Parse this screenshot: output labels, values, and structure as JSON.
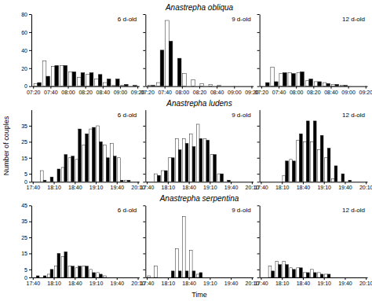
{
  "chart_data": [
    {
      "type": "bar",
      "annotations": [
        "6 d-old"
      ],
      "categories": [
        null,
        null,
        null,
        null,
        null,
        null,
        null,
        null,
        null,
        null,
        null,
        null
      ],
      "series": [
        {
          "color": "#ffffff",
          "values": [
            3,
            28,
            22,
            23,
            16,
            10,
            13,
            8,
            4,
            1,
            1,
            0
          ]
        },
        {
          "color": "#000000",
          "values": [
            4,
            11,
            23,
            23,
            16,
            15,
            15,
            13,
            8,
            8,
            2,
            1
          ]
        }
      ],
      "xlim": [
        -0.7,
        11.7
      ],
      "xticks": [
        {
          "value": -0.5,
          "label": "07:20"
        },
        {
          "value": 1.5,
          "label": "07:40"
        },
        {
          "value": 3.5,
          "label": "08:00"
        },
        {
          "value": 5.5,
          "label": "08:20"
        },
        {
          "value": 7.5,
          "label": "08:40"
        },
        {
          "value": 9.5,
          "label": "09:00"
        },
        {
          "value": 11.5,
          "label": "09:20"
        }
      ],
      "ylim": [
        0,
        80
      ],
      "yticks": [
        0,
        20,
        40,
        60,
        80
      ]
    },
    {
      "type": "bar",
      "title": "Anastrepha obliqua",
      "annotations": [
        "9 d-old"
      ],
      "categories": [
        null,
        null,
        null,
        null,
        null,
        null,
        null,
        null,
        null,
        null,
        null,
        null
      ],
      "series": [
        {
          "color": "#ffffff",
          "values": [
            1,
            4,
            73,
            0,
            14,
            7,
            3,
            2,
            1,
            0,
            0,
            0
          ]
        },
        {
          "color": "#000000",
          "values": [
            1,
            40,
            50,
            31,
            0,
            0,
            0,
            0,
            0,
            0,
            0,
            0
          ]
        }
      ],
      "xlim": [
        -0.7,
        11.7
      ],
      "xticks": [
        {
          "value": -0.5,
          "label": "07:20"
        },
        {
          "value": 1.5,
          "label": "07:40"
        },
        {
          "value": 3.5,
          "label": "08:00"
        },
        {
          "value": 5.5,
          "label": "08:20"
        },
        {
          "value": 7.5,
          "label": "08:40"
        },
        {
          "value": 9.5,
          "label": "09:00"
        },
        {
          "value": 11.5,
          "label": "09:20"
        }
      ],
      "ylim": [
        0,
        80
      ],
      "yticks": [
        0,
        20,
        40,
        60,
        80
      ],
      "tick_labels": "x"
    },
    {
      "type": "bar",
      "annotations": [
        "12 d-old"
      ],
      "categories": [
        null,
        null,
        null,
        null,
        null,
        null,
        null,
        null,
        null,
        null,
        null,
        null
      ],
      "series": [
        {
          "color": "#ffffff",
          "values": [
            0,
            21,
            14,
            15,
            15,
            6,
            5,
            4,
            2,
            1,
            0,
            0
          ]
        },
        {
          "color": "#000000",
          "values": [
            4,
            5,
            15,
            14,
            16,
            8,
            5,
            3,
            2,
            1,
            0,
            0
          ]
        }
      ],
      "xlim": [
        -0.7,
        11.7
      ],
      "xticks": [
        {
          "value": -0.5,
          "label": "07:20"
        },
        {
          "value": 1.5,
          "label": "07:40"
        },
        {
          "value": 3.5,
          "label": "08:00"
        },
        {
          "value": 5.5,
          "label": "08:20"
        },
        {
          "value": 7.5,
          "label": "08:40"
        },
        {
          "value": 9.5,
          "label": "09:00"
        },
        {
          "value": 11.5,
          "label": "09:20"
        }
      ],
      "ylim": [
        0,
        80
      ],
      "yticks": [
        0,
        20,
        40,
        60,
        80
      ],
      "tick_labels": "x"
    },
    {
      "type": "bar",
      "annotations": [
        "6 d-old"
      ],
      "ylabel": "Number of couples",
      "categories": [
        null,
        null,
        null,
        null,
        null,
        null,
        null,
        null,
        null,
        null,
        null,
        null,
        null,
        null,
        null
      ],
      "series": [
        {
          "color": "#ffffff",
          "values": [
            0,
            7,
            0,
            0,
            9,
            15,
            14,
            23,
            33,
            35,
            23,
            24,
            15,
            1,
            0
          ]
        },
        {
          "color": "#000000",
          "values": [
            0,
            1,
            3,
            8,
            17,
            16,
            33,
            30,
            34,
            25,
            15,
            16,
            1,
            1,
            0
          ]
        }
      ],
      "xlim": [
        -0.7,
        14.7
      ],
      "xticks": [
        {
          "value": -0.5,
          "label": "17:40"
        },
        {
          "value": 2.5,
          "label": "18:10"
        },
        {
          "value": 5.5,
          "label": "18:40"
        },
        {
          "value": 8.5,
          "label": "19:10"
        },
        {
          "value": 11.5,
          "label": "19:40"
        },
        {
          "value": 14.5,
          "label": "20:10"
        }
      ],
      "ylim": [
        0,
        45
      ],
      "yticks": [
        0,
        5,
        15,
        25,
        35
      ]
    },
    {
      "type": "bar",
      "title": "Anastrepha ludens",
      "annotations": [
        "9 d-old"
      ],
      "categories": [
        null,
        null,
        null,
        null,
        null,
        null,
        null,
        null,
        null,
        null,
        null,
        null,
        null,
        null,
        null
      ],
      "series": [
        {
          "color": "#ffffff",
          "values": [
            0,
            5,
            7,
            15,
            27,
            27,
            30,
            36,
            27,
            17,
            5,
            0,
            0,
            0,
            0
          ]
        },
        {
          "color": "#000000",
          "values": [
            0,
            4,
            7,
            15,
            20,
            24,
            22,
            27,
            26,
            17,
            5,
            1,
            0,
            0,
            0
          ]
        }
      ],
      "xlim": [
        -0.7,
        14.7
      ],
      "xticks": [
        {
          "value": -0.5,
          "label": "17:40"
        },
        {
          "value": 2.5,
          "label": "18:10"
        },
        {
          "value": 5.5,
          "label": "18:40"
        },
        {
          "value": 8.5,
          "label": "19:10"
        },
        {
          "value": 11.5,
          "label": "19:40"
        },
        {
          "value": 14.5,
          "label": "20:10"
        }
      ],
      "ylim": [
        0,
        45
      ],
      "yticks": [
        0,
        5,
        15,
        25,
        35
      ],
      "tick_labels": "x"
    },
    {
      "type": "bar",
      "annotations": [
        "12 d-old"
      ],
      "categories": [
        null,
        null,
        null,
        null,
        null,
        null,
        null,
        null,
        null,
        null,
        null,
        null,
        null,
        null,
        null
      ],
      "series": [
        {
          "color": "#ffffff",
          "values": [
            0,
            0,
            0,
            4,
            14,
            26,
            25,
            25,
            20,
            15,
            2,
            0,
            0,
            0,
            0
          ]
        },
        {
          "color": "#000000",
          "values": [
            0,
            0,
            0,
            13,
            13,
            30,
            38,
            38,
            29,
            21,
            10,
            5,
            1,
            0,
            0
          ]
        }
      ],
      "xlim": [
        -0.7,
        14.7
      ],
      "xticks": [
        {
          "value": -0.5,
          "label": "17:40"
        },
        {
          "value": 2.5,
          "label": "18:10"
        },
        {
          "value": 5.5,
          "label": "18:40"
        },
        {
          "value": 8.5,
          "label": "19:10"
        },
        {
          "value": 11.5,
          "label": "19:40"
        },
        {
          "value": 14.5,
          "label": "20:10"
        }
      ],
      "ylim": [
        0,
        45
      ],
      "yticks": [
        0,
        5,
        15,
        25,
        35
      ],
      "tick_labels": "x"
    },
    {
      "type": "bar",
      "annotations": [
        "6 d-old"
      ],
      "categories": [
        null,
        null,
        null,
        null,
        null,
        null,
        null,
        null,
        null,
        null,
        null,
        null,
        null,
        null,
        null
      ],
      "series": [
        {
          "color": "#ffffff",
          "values": [
            0,
            0,
            2,
            7,
            13,
            7,
            6,
            7,
            5,
            3,
            1,
            0,
            0,
            0,
            0
          ]
        },
        {
          "color": "#000000",
          "values": [
            1,
            1,
            5,
            15,
            16,
            7,
            7,
            7,
            3,
            2,
            0,
            0,
            0,
            0,
            0
          ]
        }
      ],
      "xlim": [
        -0.7,
        14.7
      ],
      "xticks": [
        {
          "value": -0.5,
          "label": "17:40"
        },
        {
          "value": 2.5,
          "label": "18:10"
        },
        {
          "value": 5.5,
          "label": "18:40"
        },
        {
          "value": 8.5,
          "label": "19:10"
        },
        {
          "value": 11.5,
          "label": "19:40"
        },
        {
          "value": 14.5,
          "label": "20:10"
        }
      ],
      "ylim": [
        0,
        45
      ],
      "yticks": [
        0,
        5,
        15,
        25,
        35,
        45
      ]
    },
    {
      "type": "bar",
      "title": "Anastrepha serpentina",
      "annotations": [
        "9 d-old"
      ],
      "xlabel": "Time",
      "categories": [
        null,
        null,
        null,
        null,
        null,
        null,
        null,
        null,
        null,
        null,
        null,
        null,
        null,
        null,
        null
      ],
      "series": [
        {
          "color": "#ffffff",
          "values": [
            1,
            7,
            0,
            0,
            18,
            38,
            17,
            2,
            0,
            0,
            0,
            0,
            0,
            0,
            0
          ]
        },
        {
          "color": "#000000",
          "values": [
            0,
            0,
            0,
            4,
            4,
            4,
            4,
            3,
            0,
            0,
            0,
            0,
            0,
            0,
            0
          ]
        }
      ],
      "xlim": [
        -0.7,
        14.7
      ],
      "xticks": [
        {
          "value": -0.5,
          "label": "17:40"
        },
        {
          "value": 2.5,
          "label": "18:10"
        },
        {
          "value": 5.5,
          "label": "18:40"
        },
        {
          "value": 8.5,
          "label": "19:10"
        },
        {
          "value": 11.5,
          "label": "19:40"
        },
        {
          "value": 14.5,
          "label": "20:10"
        }
      ],
      "ylim": [
        0,
        45
      ],
      "yticks": [
        0,
        5,
        15,
        25,
        35,
        45
      ],
      "tick_labels": "x"
    },
    {
      "type": "bar",
      "annotations": [
        "12 d-old"
      ],
      "categories": [
        null,
        null,
        null,
        null,
        null,
        null,
        null,
        null,
        null,
        null,
        null,
        null,
        null,
        null,
        null
      ],
      "series": [
        {
          "color": "#ffffff",
          "values": [
            0,
            7,
            10,
            10,
            6,
            6,
            3,
            5,
            3,
            2,
            0,
            0,
            0,
            0,
            0
          ]
        },
        {
          "color": "#000000",
          "values": [
            0,
            4,
            8,
            8,
            5,
            6,
            3,
            3,
            2,
            2,
            0,
            0,
            0,
            0,
            0
          ]
        }
      ],
      "xlim": [
        -0.7,
        14.7
      ],
      "xticks": [
        {
          "value": -0.5,
          "label": "17:40"
        },
        {
          "value": 2.5,
          "label": "18:10"
        },
        {
          "value": 5.5,
          "label": "18:40"
        },
        {
          "value": 8.5,
          "label": "19:10"
        },
        {
          "value": 11.5,
          "label": "19:40"
        },
        {
          "value": 14.5,
          "label": "20:10"
        }
      ],
      "ylim": [
        0,
        45
      ],
      "yticks": [
        0,
        5,
        15,
        25,
        35,
        45
      ],
      "tick_labels": "x"
    }
  ]
}
